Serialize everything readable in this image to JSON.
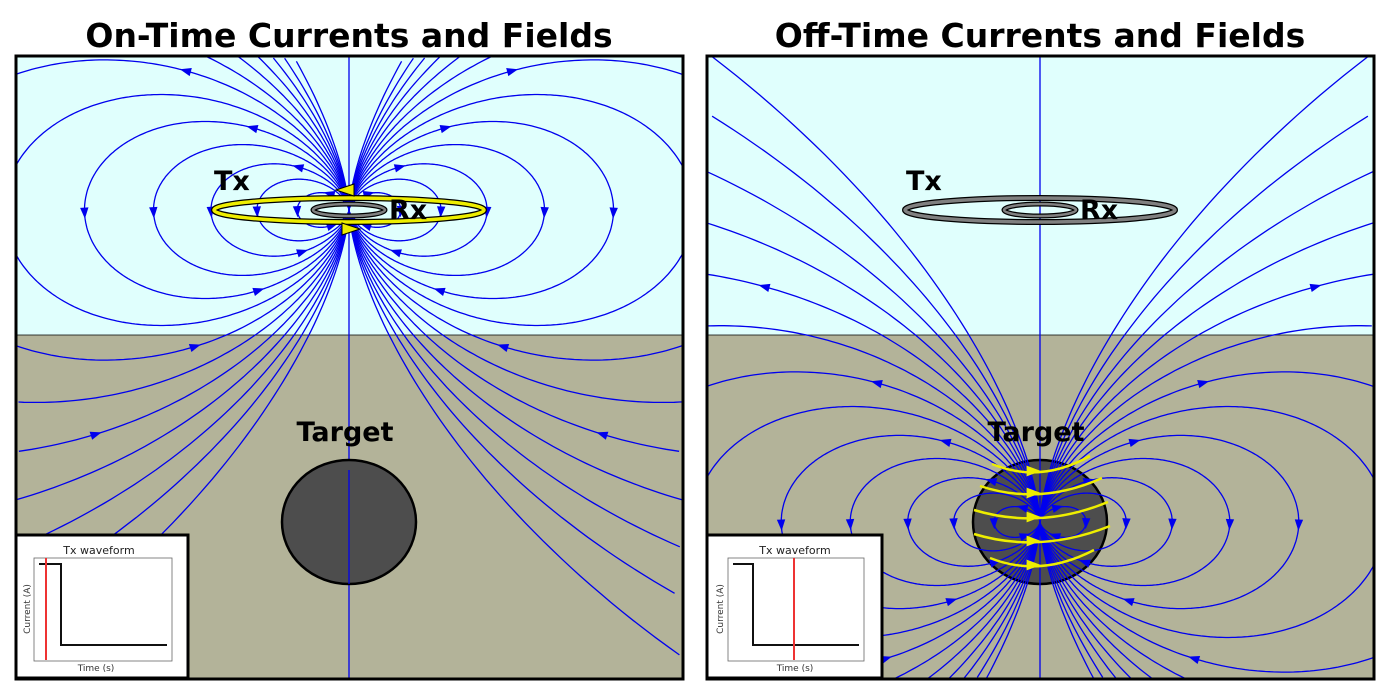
{
  "panels": [
    {
      "title": "On-Time Currents and Fields",
      "tx_label": "Tx",
      "rx_label": "Rx",
      "target_label": "Target",
      "inset": {
        "title": "Tx waveform",
        "ylabel": "Current (A)",
        "xlabel": "Time (s)",
        "marker_position": "on-time"
      },
      "tx_current_visible": true,
      "target_currents_visible": false
    },
    {
      "title": "Off-Time Currents and Fields",
      "tx_label": "Tx",
      "rx_label": "Rx",
      "target_label": "Target",
      "inset": {
        "title": "Tx waveform",
        "ylabel": "Current (A)",
        "xlabel": "Time (s)",
        "marker_position": "off-time"
      },
      "tx_current_visible": false,
      "target_currents_visible": true
    }
  ],
  "colors": {
    "air": "#e0fffd",
    "earth": "#b3b399",
    "field_lines": "#0000ee",
    "currents": "#eeee00",
    "target": "#4d4d4d",
    "loop_off": "#808080",
    "marker": "#ee3333"
  }
}
